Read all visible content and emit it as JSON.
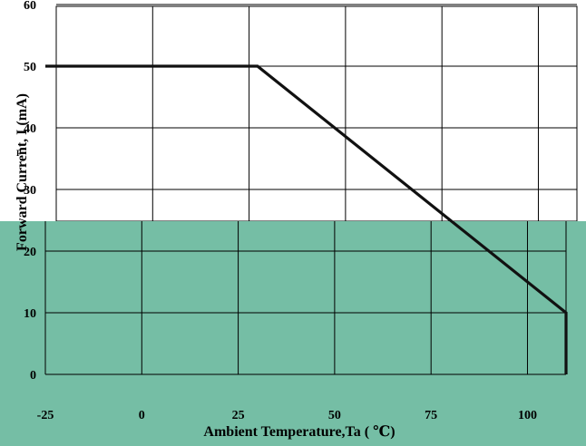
{
  "chart_data": {
    "type": "line",
    "xlabel": "Ambient Temperature,Ta ( ℃)",
    "ylabel": "Forward Current, I (mA)",
    "ylabel_subscript": "F",
    "xlim": [
      -25,
      110
    ],
    "ylim": [
      0,
      60
    ],
    "x_ticks": [
      -25,
      0,
      25,
      50,
      75,
      100
    ],
    "y_ticks": [
      0,
      10,
      20,
      30,
      40,
      50,
      60
    ],
    "grid": true,
    "colors": {
      "upper_background": "#ffffff",
      "lower_band": "#75bea5",
      "line": "#111111",
      "grid": "#000000"
    },
    "series": [
      {
        "x": [
          -25,
          30,
          110,
          110
        ],
        "y": [
          50,
          50,
          10,
          0
        ]
      }
    ]
  }
}
